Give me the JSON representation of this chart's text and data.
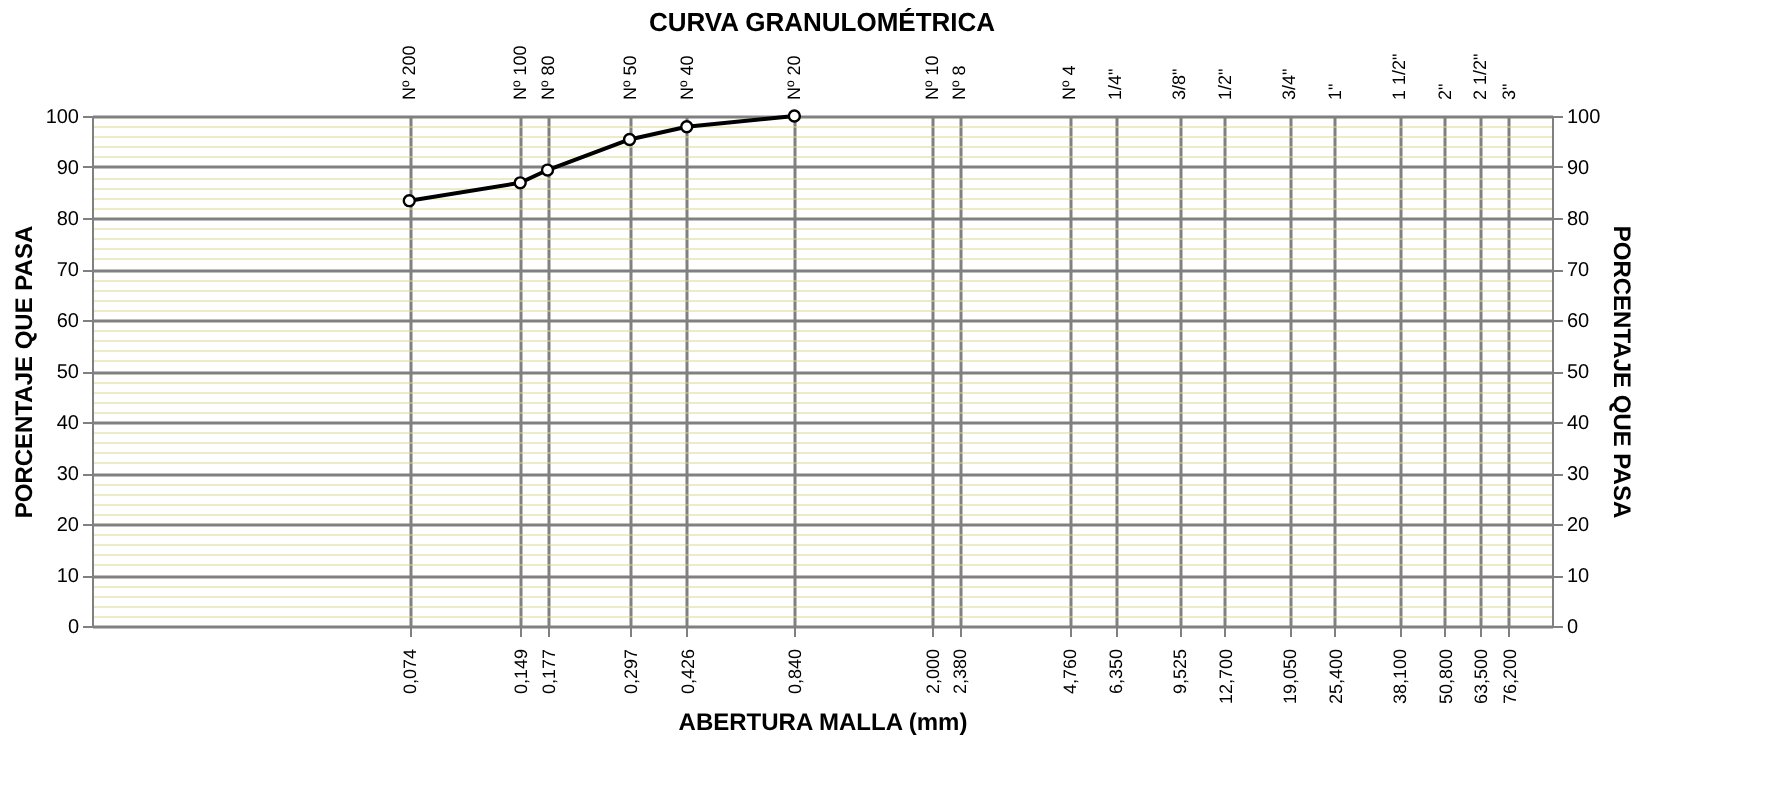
{
  "chart_data": {
    "type": "line",
    "title": "CURVA GRANULOMÉTRICA",
    "xlabel": "ABERTURA MALLA (mm)",
    "ylabel": "PORCENTAJE QUE PASA",
    "y2label": "PORCENTAJE QUE PASA",
    "x": [
      0.074,
      0.149,
      0.177,
      0.297,
      0.426,
      0.84
    ],
    "series": [
      {
        "color": "#000000",
        "values": [
          83.4,
          86.9,
          89.4,
          95.4,
          97.9,
          100
        ]
      }
    ],
    "log": "x",
    "marker": "circle",
    "line_style": "solid",
    "grid": true,
    "legend": false,
    "xlim": [
      0.01,
      100
    ],
    "ylim": [
      0,
      100
    ],
    "y2lim": [
      0,
      100
    ],
    "xticks": [
      {
        "value": 0.074,
        "label": "0,074"
      },
      {
        "value": 0.149,
        "label": "0,149"
      },
      {
        "value": 0.177,
        "label": "0,177"
      },
      {
        "value": 0.297,
        "label": "0,297"
      },
      {
        "value": 0.426,
        "label": "0,426"
      },
      {
        "value": 0.84,
        "label": "0,840"
      },
      {
        "value": 2.0,
        "label": "2,000"
      },
      {
        "value": 2.38,
        "label": "2,380"
      },
      {
        "value": 4.76,
        "label": "4,760"
      },
      {
        "value": 6.35,
        "label": "6,350"
      },
      {
        "value": 9.525,
        "label": "9,525"
      },
      {
        "value": 12.7,
        "label": "12,700"
      },
      {
        "value": 19.05,
        "label": "19,050"
      },
      {
        "value": 25.4,
        "label": "25,400"
      },
      {
        "value": 38.1,
        "label": "38,100"
      },
      {
        "value": 50.8,
        "label": "50,800"
      },
      {
        "value": 63.5,
        "label": "63,500"
      },
      {
        "value": 76.2,
        "label": "76,200"
      }
    ],
    "annotations": [
      "Nº 200",
      "Nº 100",
      "Nº 80",
      "Nº 50",
      "Nº 40",
      "Nº 20",
      "Nº 10",
      "Nº 8",
      "Nº 4",
      "1/4\"",
      "3/8\"",
      "1/2\"",
      "3/4\"",
      "1\"",
      "1 1/2\"",
      "2\"",
      "2 1/2\"",
      "3\""
    ],
    "yticks": [
      0,
      {
        "value": 2,
        "label": null
      },
      {
        "value": 4,
        "label": null
      },
      {
        "value": 6,
        "label": null
      },
      {
        "value": 8,
        "label": null
      },
      10,
      {
        "value": 12,
        "label": null
      },
      {
        "value": 14,
        "label": null
      },
      {
        "value": 16,
        "label": null
      },
      {
        "value": 18,
        "label": null
      },
      20,
      {
        "value": 22,
        "label": null
      },
      {
        "value": 24,
        "label": null
      },
      {
        "value": 26,
        "label": null
      },
      {
        "value": 28,
        "label": null
      },
      30,
      {
        "value": 32,
        "label": null
      },
      {
        "value": 34,
        "label": null
      },
      {
        "value": 36,
        "label": null
      },
      {
        "value": 38,
        "label": null
      },
      40,
      {
        "value": 42,
        "label": null
      },
      {
        "value": 44,
        "label": null
      },
      {
        "value": 46,
        "label": null
      },
      {
        "value": 48,
        "label": null
      },
      50,
      {
        "value": 52,
        "label": null
      },
      {
        "value": 54,
        "label": null
      },
      {
        "value": 56,
        "label": null
      },
      {
        "value": 58,
        "label": null
      },
      60,
      {
        "value": 62,
        "label": null
      },
      {
        "value": 64,
        "label": null
      },
      {
        "value": 66,
        "label": null
      },
      {
        "value": 68,
        "label": null
      },
      70,
      {
        "value": 72,
        "label": null
      },
      {
        "value": 74,
        "label": null
      },
      {
        "value": 76,
        "label": null
      },
      {
        "value": 78,
        "label": null
      },
      80,
      {
        "value": 82,
        "label": null
      },
      {
        "value": 84,
        "label": null
      },
      {
        "value": 86,
        "label": null
      },
      {
        "value": 88,
        "label": null
      },
      90,
      {
        "value": 92,
        "label": null
      },
      {
        "value": 94,
        "label": null
      },
      {
        "value": 96,
        "label": null
      },
      {
        "value": 98,
        "label": null
      },
      100
    ],
    "y2ticks": [
      0,
      10,
      20,
      30,
      40,
      50,
      60,
      70,
      80,
      90,
      100
    ]
  }
}
